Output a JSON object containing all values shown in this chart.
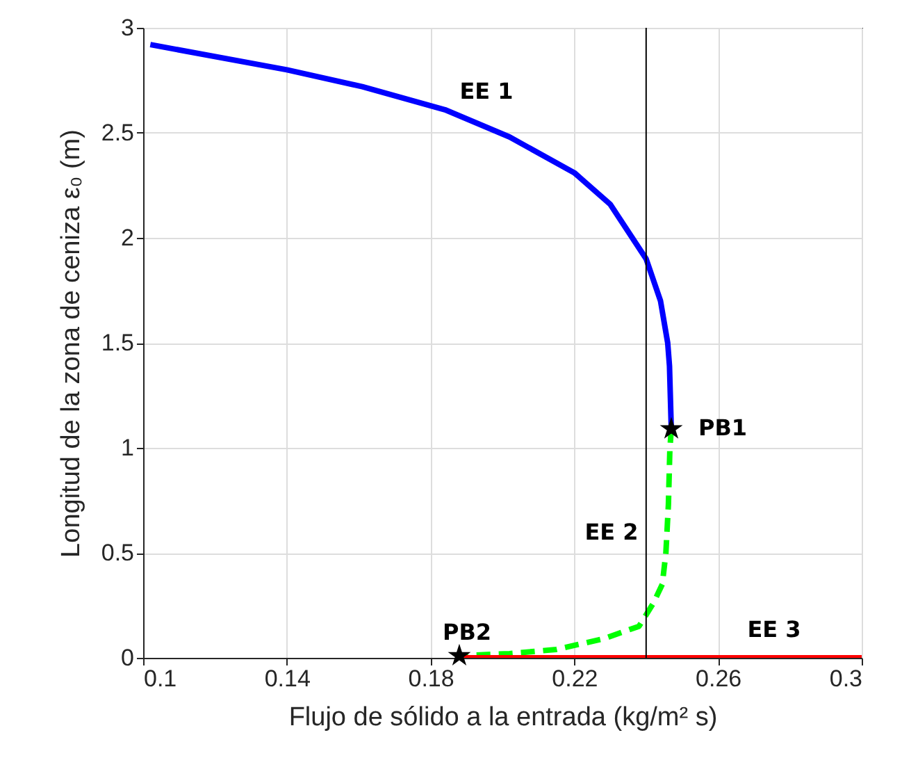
{
  "chart_data": {
    "type": "line",
    "xlabel": "Flujo de sólido a la entrada (kg/m² s)",
    "ylabel": "Longitud de la zona de ceniza  ε₀ (m)",
    "xlim": [
      0.1,
      0.3
    ],
    "xticks": [
      0.1,
      0.14,
      0.18,
      0.22,
      0.26,
      0.3
    ],
    "ylim": [
      0,
      3
    ],
    "yticks": [
      0,
      0.5,
      1,
      1.5,
      2,
      2.5,
      3
    ],
    "grid": true,
    "series": [
      {
        "color": "#0000ff",
        "line_style": "solid",
        "x": [
          0.102,
          0.14,
          0.161,
          0.184,
          0.202,
          0.22,
          0.23,
          0.24,
          0.244,
          0.246,
          0.2465,
          0.247
        ],
        "values": [
          2.92,
          2.8,
          2.72,
          2.61,
          2.48,
          2.31,
          2.16,
          1.9,
          1.7,
          1.5,
          1.39,
          1.09
        ]
      },
      {
        "color": "#00ff00",
        "line_style": "dashed",
        "x": [
          0.247,
          0.2466,
          0.2462,
          0.2455,
          0.2445,
          0.242,
          0.238,
          0.228,
          0.215,
          0.202,
          0.188
        ],
        "values": [
          1.09,
          0.99,
          0.73,
          0.5,
          0.35,
          0.26,
          0.15,
          0.09,
          0.04,
          0.02,
          0.01
        ]
      },
      {
        "color": "#ff0000",
        "line_style": "solid",
        "x": [
          0.188,
          0.3
        ],
        "values": [
          0,
          0
        ]
      },
      {
        "type": "scatter",
        "color": "#000000",
        "marker": "star",
        "x": [
          0.247,
          0.188
        ],
        "values": [
          1.09,
          0.01
        ]
      }
    ],
    "ref_lines": [
      {
        "axis": "x",
        "value": 0.24,
        "color": "#000000"
      }
    ],
    "annotations": [
      "EE 1",
      "EE 2",
      "EE 3",
      "PB1",
      "PB2"
    ]
  }
}
